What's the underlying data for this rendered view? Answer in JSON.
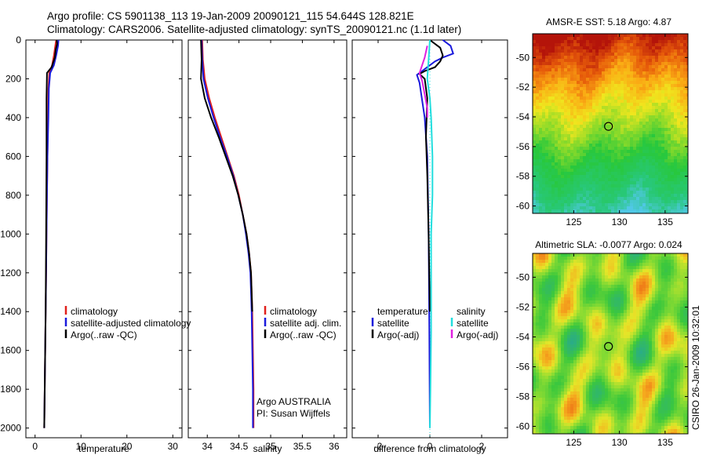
{
  "header": {
    "line1": "Argo profile: CS 5901138_113 19-Jan-2009 20090121_115 54.644S 128.821E",
    "line2": "Climatology: CARS2006. Satellite-adjusted climatology: synTS_20090121.nc (1.1d later)"
  },
  "side_stamp": "CSIRO 26-Jan-2009 10:32:01",
  "colors": {
    "red": "#e0201c",
    "blue": "#1a1adc",
    "black": "#000000",
    "cyan": "#22dede",
    "magenta": "#e020e0"
  },
  "chart_data": [
    {
      "type": "line",
      "name": "temperature-profile",
      "xlabel": "temperature",
      "ylabel": "",
      "xlim": [
        -2,
        32
      ],
      "ylim": [
        2050,
        0
      ],
      "xticks": [
        0,
        10,
        20,
        30
      ],
      "yticks": [
        0,
        200,
        400,
        600,
        800,
        1000,
        1200,
        1400,
        1600,
        1800,
        2000
      ],
      "legend": [
        "climatology",
        "satellite-adjusted climatology",
        "Argo(..raw -QC)"
      ],
      "series": [
        {
          "name": "climatology",
          "color": "red",
          "points": [
            [
              4.6,
              0
            ],
            [
              4.4,
              30
            ],
            [
              4.1,
              80
            ],
            [
              3.7,
              130
            ],
            [
              3.1,
              170
            ],
            [
              2.9,
              250
            ],
            [
              2.8,
              400
            ],
            [
              2.7,
              600
            ],
            [
              2.6,
              800
            ],
            [
              2.5,
              1000
            ],
            [
              2.4,
              1200
            ],
            [
              2.3,
              1400
            ],
            [
              2.2,
              1600
            ],
            [
              2.1,
              1800
            ],
            [
              2.0,
              2000
            ]
          ]
        },
        {
          "name": "satellite-adjusted",
          "color": "blue",
          "points": [
            [
              5.1,
              0
            ],
            [
              5.0,
              30
            ],
            [
              4.6,
              80
            ],
            [
              4.1,
              130
            ],
            [
              3.3,
              170
            ],
            [
              3.0,
              250
            ],
            [
              2.9,
              400
            ],
            [
              2.7,
              600
            ],
            [
              2.6,
              800
            ],
            [
              2.5,
              1000
            ],
            [
              2.4,
              1200
            ],
            [
              2.3,
              1400
            ],
            [
              2.2,
              1600
            ],
            [
              2.1,
              1800
            ],
            [
              2.0,
              2000
            ]
          ]
        },
        {
          "name": "Argo",
          "color": "black",
          "points": [
            [
              4.7,
              0
            ],
            [
              4.8,
              20
            ],
            [
              4.5,
              50
            ],
            [
              4.3,
              90
            ],
            [
              3.6,
              140
            ],
            [
              2.6,
              170
            ],
            [
              2.5,
              300
            ],
            [
              2.5,
              600
            ],
            [
              2.4,
              1000
            ],
            [
              2.3,
              1400
            ],
            [
              2.1,
              1800
            ],
            [
              2.0,
              2000
            ]
          ]
        }
      ]
    },
    {
      "type": "line",
      "name": "salinity-profile",
      "xlabel": "salinity",
      "ylabel": "",
      "xlim": [
        33.7,
        36.2
      ],
      "ylim": [
        2050,
        0
      ],
      "xticks": [
        34,
        34.5,
        35,
        35.5,
        36
      ],
      "yticks": [
        0,
        200,
        400,
        600,
        800,
        1000,
        1200,
        1400,
        1600,
        1800,
        2000
      ],
      "legend": [
        "climatology",
        "satellite adj. clim.",
        "Argo(..raw -QC)"
      ],
      "annotation": [
        "Argo AUSTRALIA",
        "PI: Susan Wijffels"
      ],
      "series": [
        {
          "name": "climatology",
          "color": "red",
          "points": [
            [
              33.92,
              0
            ],
            [
              33.93,
              100
            ],
            [
              33.96,
              200
            ],
            [
              34.03,
              300
            ],
            [
              34.12,
              400
            ],
            [
              34.22,
              500
            ],
            [
              34.32,
              600
            ],
            [
              34.42,
              700
            ],
            [
              34.5,
              800
            ],
            [
              34.56,
              900
            ],
            [
              34.62,
              1000
            ],
            [
              34.66,
              1100
            ],
            [
              34.69,
              1200
            ],
            [
              34.71,
              1400
            ],
            [
              34.72,
              1600
            ],
            [
              34.73,
              1800
            ],
            [
              34.73,
              2000
            ]
          ]
        },
        {
          "name": "satellite-adjusted",
          "color": "blue",
          "points": [
            [
              33.91,
              0
            ],
            [
              33.92,
              100
            ],
            [
              33.94,
              200
            ],
            [
              34.01,
              300
            ],
            [
              34.1,
              400
            ],
            [
              34.2,
              500
            ],
            [
              34.31,
              600
            ],
            [
              34.41,
              700
            ],
            [
              34.49,
              800
            ],
            [
              34.56,
              900
            ],
            [
              34.61,
              1000
            ],
            [
              34.65,
              1100
            ],
            [
              34.68,
              1200
            ],
            [
              34.7,
              1400
            ],
            [
              34.71,
              1600
            ],
            [
              34.72,
              1800
            ],
            [
              34.72,
              2000
            ]
          ]
        },
        {
          "name": "Argo",
          "color": "black",
          "points": [
            [
              33.9,
              0
            ],
            [
              33.91,
              100
            ],
            [
              33.9,
              200
            ],
            [
              33.96,
              300
            ],
            [
              34.06,
              400
            ],
            [
              34.18,
              500
            ],
            [
              34.29,
              600
            ],
            [
              34.4,
              700
            ],
            [
              34.49,
              800
            ],
            [
              34.56,
              900
            ],
            [
              34.62,
              1000
            ],
            [
              34.66,
              1100
            ],
            [
              34.69,
              1200
            ],
            [
              34.71,
              1400
            ]
          ]
        }
      ]
    },
    {
      "type": "line",
      "name": "difference-profile",
      "xlabel": "difference from climatology",
      "ylabel": "",
      "xlim": [
        -3,
        3
      ],
      "ylim": [
        2050,
        0
      ],
      "xticks": [
        -2,
        0,
        2
      ],
      "yticks": [
        0,
        200,
        400,
        600,
        800,
        1000,
        1200,
        1400,
        1600,
        1800,
        2000
      ],
      "legend_left_title": "temperature",
      "legend_left": [
        "satellite",
        "Argo(-adj)"
      ],
      "legend_right_title": "salinity",
      "legend_right": [
        "satellite",
        "Argo(-adj)"
      ],
      "series": [
        {
          "name": "temperature satellite",
          "color": "blue",
          "points": [
            [
              0.5,
              0
            ],
            [
              0.8,
              30
            ],
            [
              0.9,
              70
            ],
            [
              0.5,
              90
            ],
            [
              0.2,
              110
            ],
            [
              -0.2,
              150
            ],
            [
              -0.5,
              180
            ],
            [
              -0.4,
              220
            ],
            [
              -0.2,
              400
            ],
            [
              -0.1,
              600
            ],
            [
              -0.05,
              1000
            ],
            [
              -0.02,
              1500
            ],
            [
              0.0,
              2000
            ]
          ]
        },
        {
          "name": "temperature Argo",
          "color": "black",
          "points": [
            [
              0.0,
              0
            ],
            [
              0.4,
              40
            ],
            [
              0.5,
              80
            ],
            [
              0.4,
              110
            ],
            [
              0.2,
              140
            ],
            [
              -0.2,
              160
            ],
            [
              -0.4,
              175
            ],
            [
              -0.2,
              200
            ],
            [
              -0.1,
              300
            ],
            [
              -0.15,
              500
            ],
            [
              -0.1,
              700
            ],
            [
              -0.05,
              1000
            ],
            [
              0.0,
              1400
            ]
          ]
        },
        {
          "name": "salinity satellite",
          "color": "cyan",
          "points": [
            [
              0.0,
              0
            ],
            [
              -0.05,
              100
            ],
            [
              -0.1,
              200
            ],
            [
              0.0,
              300
            ],
            [
              0.05,
              400
            ],
            [
              0.1,
              600
            ],
            [
              0.1,
              800
            ],
            [
              0.05,
              1000
            ],
            [
              0.05,
              1200
            ],
            [
              0.05,
              1500
            ],
            [
              0.02,
              1800
            ],
            [
              0.0,
              2000
            ]
          ]
        },
        {
          "name": "salinity Argo",
          "color": "magenta",
          "points": [
            [
              -0.1,
              30
            ],
            [
              -0.2,
              90
            ],
            [
              -0.3,
              130
            ],
            [
              -0.4,
              170
            ],
            [
              -0.3,
              210
            ],
            [
              -0.2,
              280
            ],
            [
              -0.1,
              350
            ],
            [
              -0.1,
              400
            ]
          ]
        }
      ]
    },
    {
      "type": "heatmap",
      "name": "amsre-sst-map",
      "title": "AMSR-E SST: 5.18 Argo: 4.87",
      "xlim": [
        120.5,
        137.5
      ],
      "ylim": [
        -60.5,
        -48.4
      ],
      "xticks": [
        125,
        130,
        135
      ],
      "yticks": [
        -50,
        -52,
        -54,
        -56,
        -58,
        -60
      ],
      "marker": {
        "lon": 128.8,
        "lat": -54.64
      }
    },
    {
      "type": "heatmap",
      "name": "altimetric-sla-map",
      "title": "Altimetric SLA: -0.0077 Argo: 0.024",
      "xlim": [
        120.5,
        137.5
      ],
      "ylim": [
        -60.5,
        -48.4
      ],
      "xticks": [
        125,
        130,
        135
      ],
      "yticks": [
        -50,
        -52,
        -54,
        -56,
        -58,
        -60
      ],
      "marker": {
        "lon": 128.8,
        "lat": -54.64
      }
    }
  ]
}
